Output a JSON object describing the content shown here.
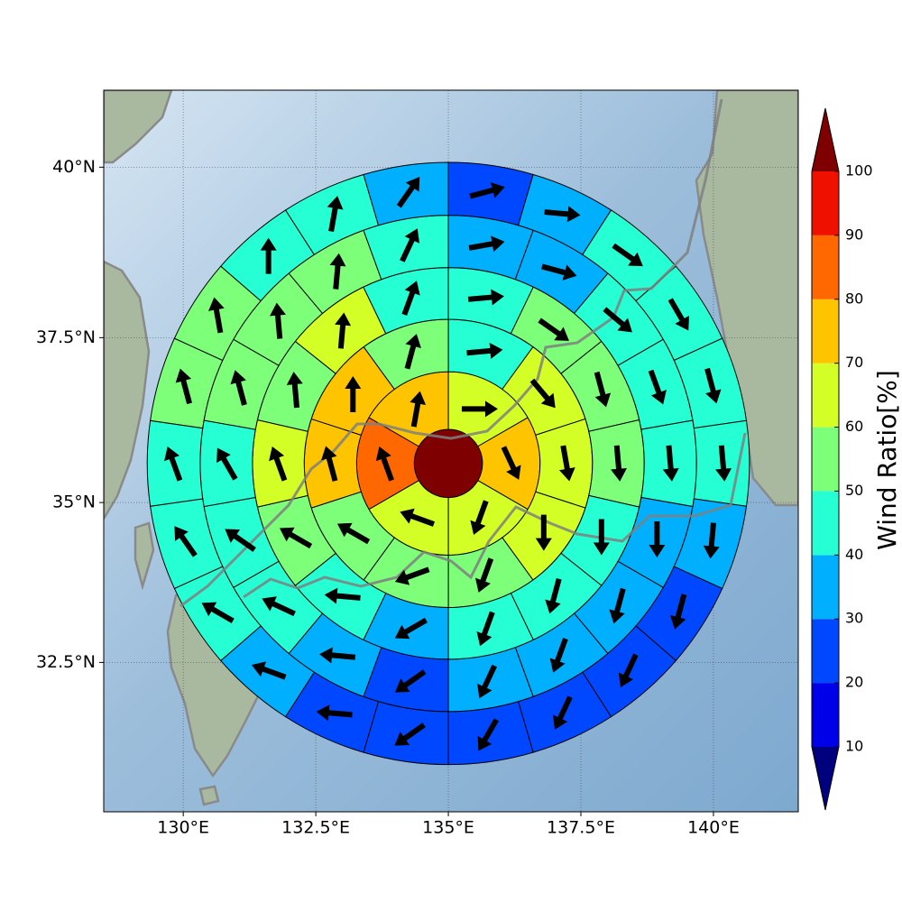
{
  "chart_data": {
    "type": "sectormap",
    "projection": "mercator",
    "xlim": [
      128.5,
      141.6
    ],
    "ylim": [
      30.1,
      41.1
    ],
    "xticks": [
      {
        "value": 130,
        "label": "130°E"
      },
      {
        "value": 132.5,
        "label": "132.5°E"
      },
      {
        "value": 135,
        "label": "135°E"
      },
      {
        "value": 137.5,
        "label": "137.5°E"
      },
      {
        "value": 140,
        "label": "140°E"
      }
    ],
    "yticks": [
      {
        "value": 32.5,
        "label": "32.5°N"
      },
      {
        "value": 35,
        "label": "35°N"
      },
      {
        "value": 37.5,
        "label": "37.5°N"
      },
      {
        "value": 40,
        "label": "40°N"
      }
    ],
    "grid": true,
    "center": [
      135,
      35.6
    ],
    "radii_km": [
      58,
      156,
      245,
      333,
      422,
      512
    ],
    "center_value": 105,
    "rings": [
      {
        "values": [
          65,
          75,
          65,
          65,
          85,
          75
        ],
        "directions": [
          90,
          155,
          200,
          290,
          340,
          10
        ]
      },
      {
        "values": [
          45,
          65,
          65,
          65,
          55,
          55,
          55,
          75,
          75,
          55
        ],
        "directions": [
          85,
          140,
          170,
          180,
          200,
          250,
          300,
          345,
          0,
          15
        ]
      },
      {
        "values": [
          45,
          55,
          55,
          55,
          45,
          45,
          45,
          35,
          45,
          55,
          65,
          55,
          65,
          45
        ],
        "directions": [
          85,
          125,
          165,
          175,
          180,
          195,
          200,
          240,
          275,
          300,
          340,
          355,
          5,
          20
        ]
      },
      {
        "values": [
          35,
          35,
          45,
          45,
          45,
          35,
          35,
          35,
          35,
          25,
          35,
          45,
          45,
          45,
          55,
          55,
          55,
          45
        ],
        "directions": [
          80,
          105,
          130,
          160,
          175,
          180,
          195,
          200,
          205,
          235,
          275,
          295,
          305,
          330,
          345,
          355,
          5,
          25
        ]
      },
      {
        "values": [
          25,
          35,
          45,
          45,
          45,
          45,
          35,
          25,
          25,
          25,
          25,
          25,
          25,
          35,
          45,
          45,
          45,
          55,
          55,
          45,
          45,
          35
        ],
        "directions": [
          75,
          95,
          125,
          150,
          165,
          175,
          185,
          195,
          205,
          205,
          210,
          235,
          275,
          290,
          300,
          325,
          340,
          345,
          350,
          0,
          10,
          35
        ]
      }
    ],
    "colorbar": {
      "label": "Wind Ratio[%]",
      "levels": [
        10,
        20,
        30,
        40,
        50,
        60,
        70,
        80,
        90,
        100
      ],
      "colors": [
        "#00007f",
        "#0000e8",
        "#0048ff",
        "#00b0ff",
        "#26ffd4",
        "#7dff7a",
        "#d4ff26",
        "#ffc400",
        "#ff6800",
        "#f01000",
        "#7f0000"
      ]
    }
  }
}
